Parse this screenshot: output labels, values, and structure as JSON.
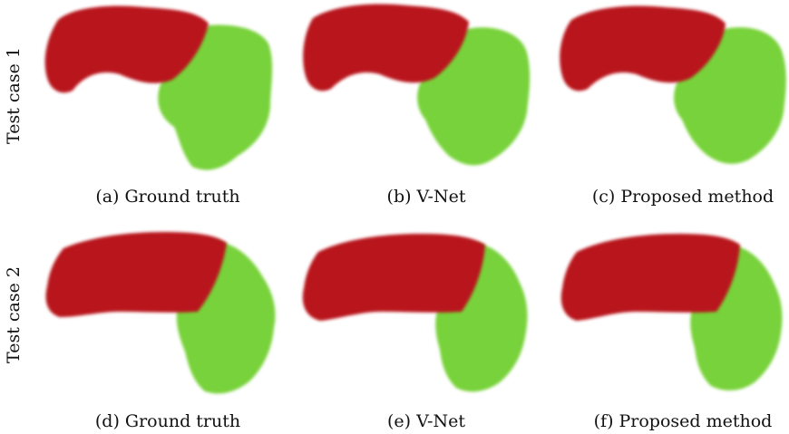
{
  "figure": {
    "rows": [
      {
        "label": "Test case 1",
        "panels": [
          {
            "tag": "(a)",
            "caption": "Ground truth"
          },
          {
            "tag": "(b)",
            "caption": "V-Net"
          },
          {
            "tag": "(c)",
            "caption": "Proposed method"
          }
        ]
      },
      {
        "label": "Test case 2",
        "panels": [
          {
            "tag": "(d)",
            "caption": "Ground truth"
          },
          {
            "tag": "(e)",
            "caption": "V-Net"
          },
          {
            "tag": "(f)",
            "caption": "Proposed method"
          }
        ]
      }
    ],
    "colors": {
      "red_region": "#b8141c",
      "green_region": "#78d23a"
    }
  }
}
